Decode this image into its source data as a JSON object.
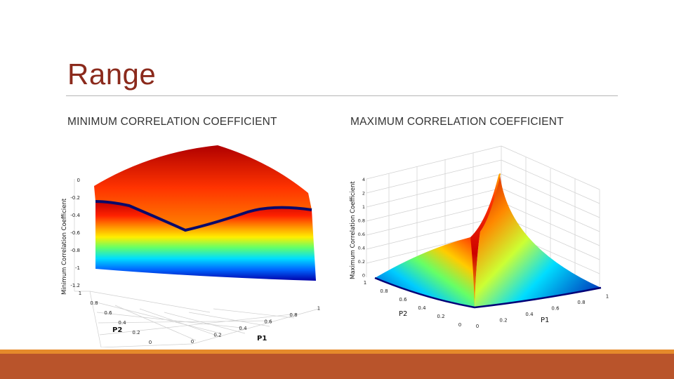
{
  "slide": {
    "title": "Range"
  },
  "left_heading": "MINIMUM CORRELATION COEFFICIENT",
  "right_heading": "MAXIMUM CORRELATION COEFFICIENT",
  "colors": {
    "title": "#8b2a1c",
    "footer_thin": "#e58a2b",
    "footer_bar": "#b9542b"
  },
  "chart_data": [
    {
      "type": "surface",
      "zlabel": "Minimum Correlation Coefficient",
      "xlabel": "P1",
      "ylabel": "P2",
      "z_ticks": [
        "0",
        "-0.2",
        "-0.4",
        "-0.6",
        "-0.8",
        "-1",
        "-1.2"
      ],
      "p2_ticks": [
        "1",
        "0.8",
        "0.6",
        "0.4",
        "0.2",
        "0"
      ],
      "p1_ticks": [
        "0",
        "0.2",
        "0.4",
        "0.6",
        "0.8",
        "1"
      ],
      "p1_range": [
        0,
        1
      ],
      "p2_range": [
        0,
        1
      ],
      "zlim": [
        -1.2,
        0
      ],
      "colormap": "jet"
    },
    {
      "type": "surface",
      "zlabel": "Maximum Correlation Coefficient",
      "xlabel": "P1",
      "ylabel": "P2",
      "z_ticks": [
        "4",
        "2",
        "1",
        "0.8",
        "0.6",
        "0.4",
        "0.2",
        "0"
      ],
      "p2_ticks": [
        "1",
        "0.8",
        "0.6",
        "0.4",
        "0.2",
        "0"
      ],
      "p1_ticks": [
        "0",
        "0.2",
        "0.4",
        "0.6",
        "0.8",
        "1"
      ],
      "p1_range": [
        0,
        1
      ],
      "p2_range": [
        0,
        1
      ],
      "zlim": [
        0,
        4
      ],
      "colormap": "jet"
    }
  ]
}
